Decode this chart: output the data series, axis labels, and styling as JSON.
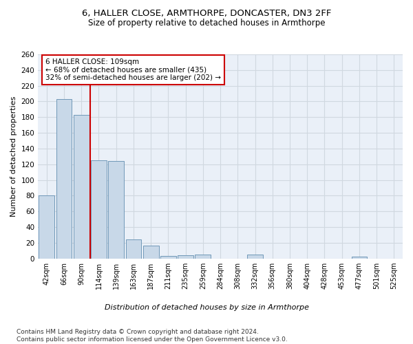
{
  "title1": "6, HALLER CLOSE, ARMTHORPE, DONCASTER, DN3 2FF",
  "title2": "Size of property relative to detached houses in Armthorpe",
  "xlabel": "Distribution of detached houses by size in Armthorpe",
  "ylabel": "Number of detached properties",
  "bar_labels": [
    "42sqm",
    "66sqm",
    "90sqm",
    "114sqm",
    "139sqm",
    "163sqm",
    "187sqm",
    "211sqm",
    "235sqm",
    "259sqm",
    "284sqm",
    "308sqm",
    "332sqm",
    "356sqm",
    "380sqm",
    "404sqm",
    "428sqm",
    "453sqm",
    "477sqm",
    "501sqm",
    "525sqm"
  ],
  "bar_values": [
    80,
    203,
    183,
    125,
    124,
    24,
    16,
    3,
    4,
    5,
    0,
    0,
    5,
    0,
    0,
    0,
    0,
    0,
    2,
    0,
    0
  ],
  "bar_color": "#c8d8e8",
  "bar_edge_color": "#7098b8",
  "property_line_x": 2.5,
  "annotation_text": "6 HALLER CLOSE: 109sqm\n← 68% of detached houses are smaller (435)\n32% of semi-detached houses are larger (202) →",
  "annotation_box_color": "#ffffff",
  "annotation_box_edge": "#cc0000",
  "vline_color": "#cc0000",
  "footer": "Contains HM Land Registry data © Crown copyright and database right 2024.\nContains public sector information licensed under the Open Government Licence v3.0.",
  "ylim": [
    0,
    260
  ],
  "yticks": [
    0,
    20,
    40,
    60,
    80,
    100,
    120,
    140,
    160,
    180,
    200,
    220,
    240,
    260
  ],
  "grid_color": "#d0d8e0",
  "background_color": "#eaf0f8",
  "title1_fontsize": 9.5,
  "title2_fontsize": 8.5,
  "xlabel_fontsize": 8,
  "ylabel_fontsize": 8,
  "tick_fontsize": 7.5,
  "footer_fontsize": 6.5,
  "annotation_fontsize": 7.5
}
